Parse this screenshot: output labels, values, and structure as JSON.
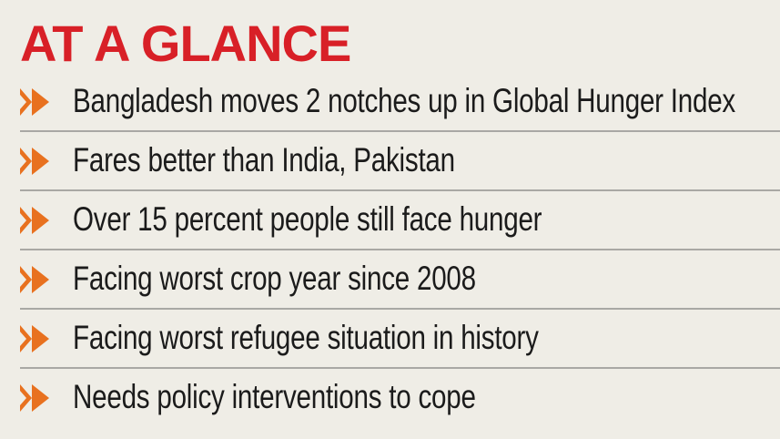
{
  "header": {
    "title": "AT A GLANCE"
  },
  "colors": {
    "title": "#d82027",
    "arrow": "#e8711f",
    "background": "#efede6",
    "text": "#1b1b1b",
    "divider": "#a9a8a4"
  },
  "bullets": {
    "icon": "double-chevron-right-icon",
    "items": [
      "Bangladesh moves 2 notches up in Global Hunger Index",
      "Fares better than India, Pakistan",
      "Over 15 percent people still face hunger",
      "Facing worst crop year since 2008",
      "Facing worst refugee situation in history",
      "Needs policy interventions to cope"
    ]
  }
}
